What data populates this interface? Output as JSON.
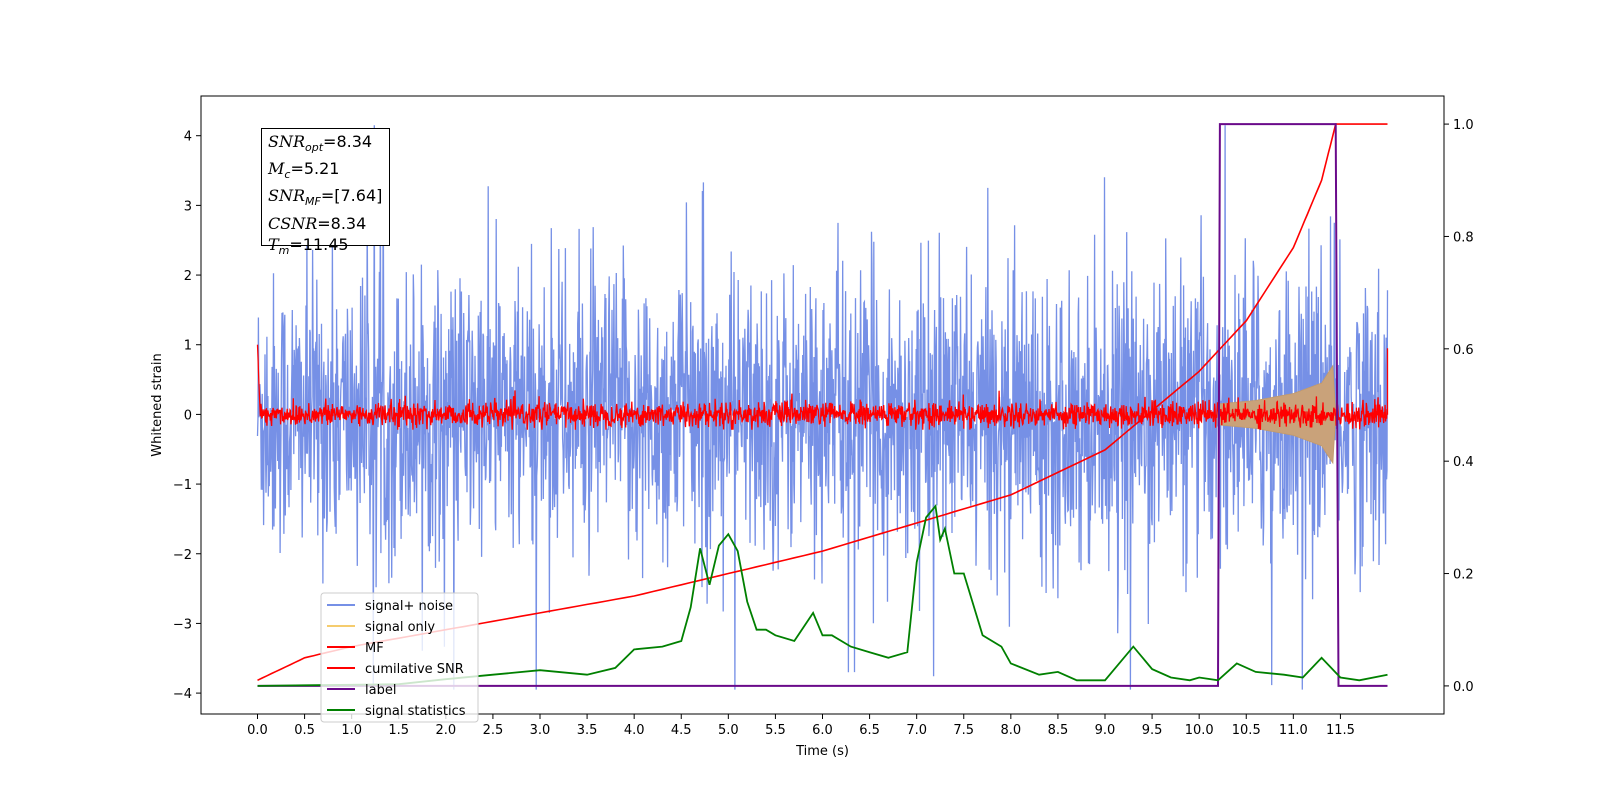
{
  "chart_data": {
    "type": "line",
    "xlabel": "Time (s)",
    "ylabel": "Whitened strain",
    "xlim": [
      -0.6,
      12.6
    ],
    "ylim": [
      -4.3,
      4.57
    ],
    "y2lim": [
      -0.05,
      1.05
    ],
    "x_ticks": [
      "0.0",
      "0.5",
      "1.0",
      "1.5",
      "2.0",
      "2.5",
      "3.0",
      "3.5",
      "4.0",
      "4.5",
      "5.0",
      "5.5",
      "6.0",
      "6.5",
      "7.0",
      "7.5",
      "8.0",
      "8.5",
      "9.0",
      "9.5",
      "10.0",
      "10.5",
      "11.0",
      "11.5"
    ],
    "y_ticks": [
      "4",
      "3",
      "2",
      "1",
      "0",
      "−1",
      "−2",
      "−3",
      "−4"
    ],
    "y2_ticks": [
      "1.0",
      "0.8",
      "0.6",
      "0.4",
      "0.2",
      "0.0"
    ],
    "annotation": {
      "snr_opt": "8.34",
      "mc": "5.21",
      "snr_mf": "[7.64]",
      "csnr": "8.34",
      "tm": "11.45"
    },
    "legend": {
      "placement": "lower-left",
      "entries": [
        {
          "label": "signal+ noise",
          "color": "#7690e6"
        },
        {
          "label": "signal only",
          "color": "#f5cc6e"
        },
        {
          "label": "MF",
          "color": "#ff0000"
        },
        {
          "label": "cumilative SNR",
          "color": "#ff0000"
        },
        {
          "label": "label",
          "color": "#6a0a8a"
        },
        {
          "label": "signal statistics",
          "color": "#008000"
        }
      ]
    },
    "series": [
      {
        "name": "signal+ noise",
        "axis": "left",
        "description_range": [
          -4.0,
          4.2
        ]
      },
      {
        "name": "signal only",
        "axis": "left",
        "envelope": {
          "x": [
            10.2,
            10.6,
            11.0,
            11.3,
            11.42,
            11.45
          ],
          "amp": [
            0.15,
            0.2,
            0.3,
            0.45,
            0.7,
            0.0
          ]
        }
      },
      {
        "name": "MF",
        "axis": "left",
        "description_range": [
          -0.2,
          0.3
        ]
      },
      {
        "name": "cumilative SNR",
        "axis": "right",
        "x": [
          0.0,
          0.5,
          1.0,
          2.0,
          3.0,
          4.0,
          5.0,
          6.0,
          7.0,
          8.0,
          9.0,
          10.0,
          10.5,
          11.0,
          11.3,
          11.45,
          12.0
        ],
        "y": [
          0.01,
          0.05,
          0.07,
          0.1,
          0.13,
          0.16,
          0.2,
          0.24,
          0.29,
          0.34,
          0.42,
          0.56,
          0.65,
          0.78,
          0.9,
          1.0,
          1.0
        ]
      },
      {
        "name": "label",
        "axis": "right",
        "x": [
          0.0,
          10.2,
          10.22,
          11.45,
          11.48,
          12.0
        ],
        "y": [
          0.0,
          0.0,
          1.0,
          1.0,
          0.0,
          0.0
        ]
      },
      {
        "name": "signal statistics",
        "axis": "right",
        "x": [
          0.0,
          0.5,
          1.0,
          1.5,
          2.0,
          2.5,
          3.0,
          3.5,
          3.8,
          4.0,
          4.3,
          4.5,
          4.6,
          4.7,
          4.8,
          4.9,
          5.0,
          5.1,
          5.2,
          5.3,
          5.4,
          5.5,
          5.7,
          5.9,
          6.0,
          6.1,
          6.3,
          6.5,
          6.7,
          6.9,
          7.0,
          7.1,
          7.2,
          7.25,
          7.3,
          7.4,
          7.5,
          7.7,
          7.9,
          8.0,
          8.3,
          8.5,
          8.7,
          9.0,
          9.3,
          9.5,
          9.7,
          9.9,
          10.0,
          10.2,
          10.4,
          10.6,
          10.9,
          11.1,
          11.3,
          11.5,
          11.7,
          12.0
        ],
        "y": [
          0.0,
          0.001,
          0.002,
          0.003,
          0.012,
          0.02,
          0.028,
          0.02,
          0.032,
          0.065,
          0.07,
          0.08,
          0.14,
          0.245,
          0.18,
          0.25,
          0.27,
          0.24,
          0.15,
          0.1,
          0.1,
          0.09,
          0.08,
          0.13,
          0.09,
          0.09,
          0.07,
          0.06,
          0.05,
          0.06,
          0.22,
          0.3,
          0.32,
          0.26,
          0.28,
          0.2,
          0.2,
          0.09,
          0.07,
          0.04,
          0.02,
          0.025,
          0.01,
          0.01,
          0.07,
          0.03,
          0.015,
          0.01,
          0.015,
          0.01,
          0.04,
          0.025,
          0.02,
          0.015,
          0.05,
          0.015,
          0.01,
          0.02
        ]
      }
    ]
  }
}
